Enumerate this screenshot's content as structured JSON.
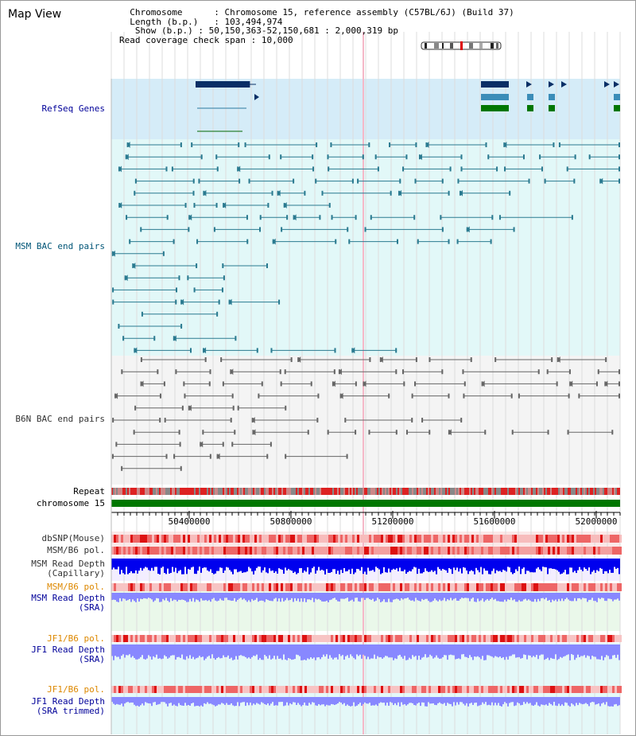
{
  "page": {
    "title": "Map View"
  },
  "info": {
    "chromosome_label": "Chromosome",
    "chromosome_value": "Chromosome 15, reference assembly (C57BL/6J) (Build 37)",
    "length_label": "Length (b.p.)",
    "length_value": "103,494,974",
    "show_label": "Show (b.p.)",
    "show_value": "50,150,363-52,150,681 : 2,000,319 bp",
    "coverage_label": "Read coverage check span",
    "coverage_value": "10,000"
  },
  "tracks": {
    "refseq": "RefSeq Genes",
    "msm_bac": "MSM BAC end pairs",
    "b6n_bac": "B6N BAC end pairs",
    "repeat": "Repeat",
    "chromosome": "chromosome 15",
    "dbsnp": "dbSNP(Mouse)",
    "msm_b6_pol_1": "MSM/B6 pol.",
    "msm_depth_cap_1": "MSM Read Depth",
    "msm_depth_cap_2": "(Capillary)",
    "msm_b6_pol_2": "MSM/B6 pol.",
    "msm_depth_sra_1": "MSM Read Depth",
    "msm_depth_sra_2": "(SRA)",
    "jf1_b6_pol_1": "JF1/B6 pol.",
    "jf1_depth_sra_1": "JF1 Read Depth",
    "jf1_depth_sra_2": "(SRA)",
    "jf1_b6_pol_2": "JF1/B6 pol.",
    "jf1_depth_trim_1": "JF1 Read Depth",
    "jf1_depth_trim_2": "(SRA trimmed)"
  },
  "ruler": {
    "ticks": [
      "50400000",
      "50800000",
      "51200000",
      "51600000",
      "52000000"
    ]
  },
  "colors": {
    "refseq_bg": "#d5ecf8",
    "msm_bg": "#e2f8f8",
    "b6n_bg": "#f4f4f4",
    "refseq_label": "#000099",
    "msm_label": "#005577",
    "b6n_label": "#333333",
    "pol_label": "#dd8800",
    "depth_label": "#000099",
    "chromosome_bar": "#007700",
    "depth_capillary": "#0000ee",
    "depth_sra": "#8888ff"
  }
}
